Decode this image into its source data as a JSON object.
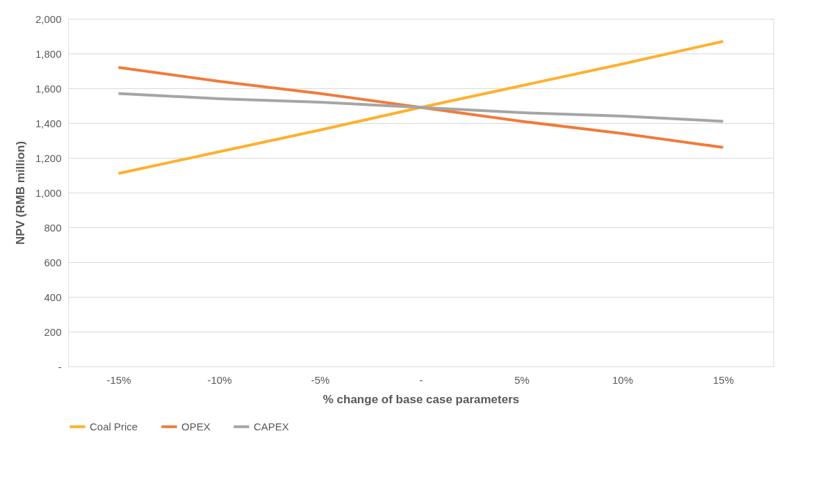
{
  "chart_data": {
    "type": "line",
    "xlabel": "% change of base case parameters",
    "ylabel": "NPV (RMB million)",
    "categories": [
      "-15%",
      "-10%",
      "-5%",
      "-",
      "5%",
      "10%",
      "15%"
    ],
    "series": [
      {
        "name": "Coal Price",
        "color": "#ffb02e",
        "values": [
          1110,
          1235,
          1360,
          1490,
          1615,
          1740,
          1870
        ]
      },
      {
        "name": "OPEX",
        "color": "#f07b3a",
        "values": [
          1720,
          1640,
          1570,
          1490,
          1410,
          1340,
          1260
        ]
      },
      {
        "name": "CAPEX",
        "color": "#a5a5a5",
        "values": [
          1570,
          1540,
          1520,
          1490,
          1460,
          1440,
          1410
        ]
      }
    ],
    "ylim": [
      0,
      2000
    ],
    "yticks": [
      {
        "value": 0,
        "label": "-"
      },
      {
        "value": 200,
        "label": "200"
      },
      {
        "value": 400,
        "label": "400"
      },
      {
        "value": 600,
        "label": "600"
      },
      {
        "value": 800,
        "label": "800"
      },
      {
        "value": 1000,
        "label": "1,000"
      },
      {
        "value": 1200,
        "label": "1,200"
      },
      {
        "value": 1400,
        "label": "1,400"
      },
      {
        "value": 1600,
        "label": "1,600"
      },
      {
        "value": 1800,
        "label": "1,800"
      },
      {
        "value": 2000,
        "label": "2,000"
      }
    ],
    "grid": "y",
    "legend": "bottom",
    "marker": "none",
    "line_style": "solid"
  }
}
